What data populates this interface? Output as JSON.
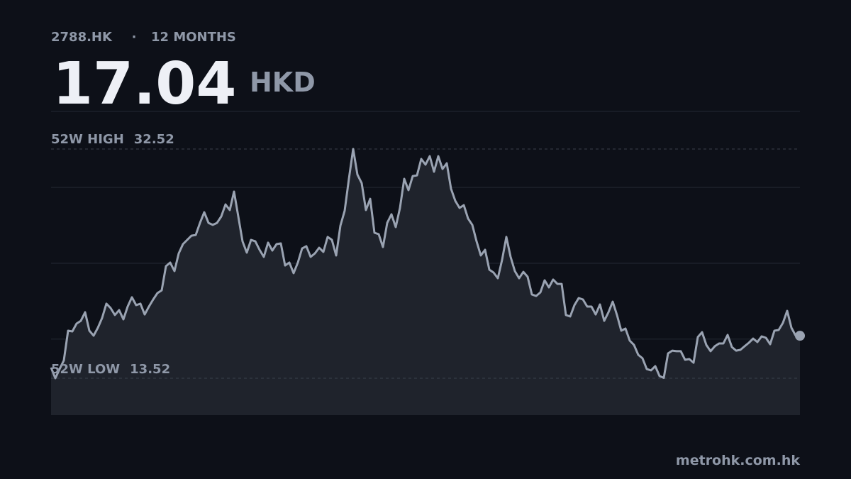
{
  "ticker": "2788.HK",
  "separator": "·",
  "period": "12 MONTHS",
  "price": "17.04",
  "currency": "HKD",
  "source": "metrohk.com.hk",
  "chart_data": {
    "type": "area",
    "high_label": "52W HIGH",
    "high": 32.52,
    "low_label": "52W LOW",
    "low": 13.52,
    "color": "#9aa3b2",
    "fill": "#1f232c",
    "ylim": [
      10.46,
      35.64
    ],
    "yticks": [
      16.76,
      23.05,
      29.34
    ],
    "grid": true,
    "values": [
      14.4,
      13.52,
      14.28,
      14.99,
      17.46,
      17.4,
      18.05,
      18.28,
      18.99,
      17.46,
      17.05,
      17.7,
      18.52,
      19.7,
      19.34,
      18.76,
      19.17,
      18.4,
      19.46,
      20.23,
      19.58,
      19.7,
      18.81,
      19.46,
      20.05,
      20.58,
      20.81,
      22.81,
      23.11,
      22.4,
      23.87,
      24.64,
      24.99,
      25.34,
      25.4,
      26.4,
      27.28,
      26.4,
      26.23,
      26.4,
      26.93,
      27.93,
      27.46,
      28.99,
      26.93,
      24.87,
      23.93,
      24.99,
      24.87,
      24.17,
      23.58,
      24.76,
      24.11,
      24.64,
      24.7,
      22.87,
      23.11,
      22.23,
      23.11,
      24.28,
      24.46,
      23.58,
      23.87,
      24.34,
      23.99,
      25.23,
      24.99,
      23.7,
      26.17,
      27.4,
      30.05,
      32.52,
      30.4,
      29.7,
      27.46,
      28.4,
      25.58,
      25.46,
      24.4,
      26.4,
      27.11,
      26.05,
      27.64,
      30.05,
      29.11,
      30.28,
      30.34,
      31.7,
      31.23,
      31.93,
      30.64,
      31.93,
      30.87,
      31.34,
      29.23,
      28.23,
      27.64,
      27.87,
      26.76,
      26.23,
      24.87,
      23.7,
      24.17,
      22.52,
      22.28,
      21.81,
      23.34,
      25.23,
      23.58,
      22.4,
      21.81,
      22.34,
      21.93,
      20.46,
      20.34,
      20.64,
      21.64,
      21.05,
      21.7,
      21.34,
      21.34,
      18.76,
      18.64,
      19.58,
      20.17,
      20.05,
      19.46,
      19.46,
      18.81,
      19.64,
      18.28,
      18.99,
      19.87,
      18.76,
      17.46,
      17.64,
      16.64,
      16.28,
      15.46,
      15.17,
      14.28,
      14.17,
      14.52,
      13.7,
      13.55,
      15.58,
      15.81,
      15.76,
      15.76,
      15.05,
      15.11,
      14.81,
      16.93,
      17.34,
      16.28,
      15.76,
      16.17,
      16.4,
      16.4,
      17.11,
      16.11,
      15.81,
      15.87,
      16.17,
      16.46,
      16.81,
      16.52,
      16.99,
      16.87,
      16.34,
      17.46,
      17.52,
      18.11,
      19.11,
      17.7,
      17.05,
      17.04
    ]
  }
}
